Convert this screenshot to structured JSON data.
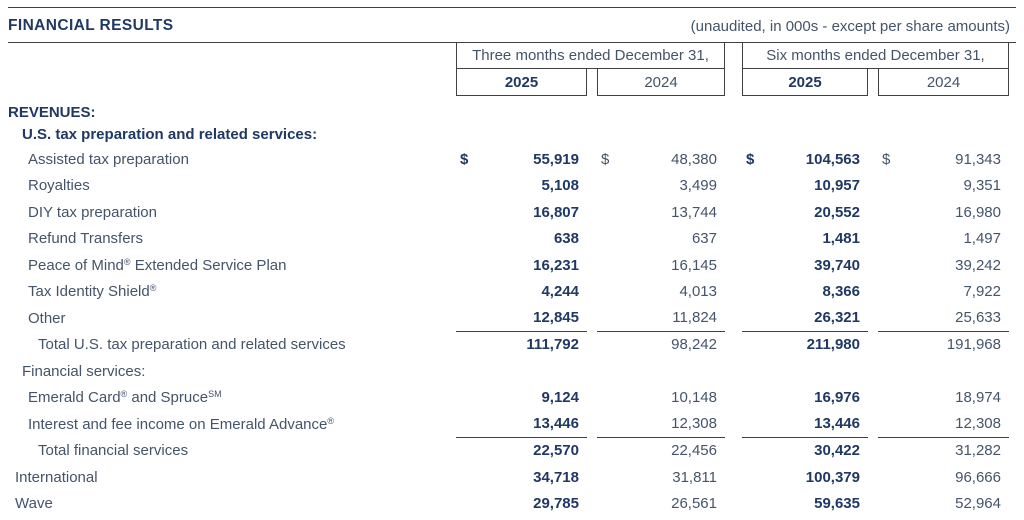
{
  "header": {
    "title": "FINANCIAL RESULTS",
    "note": "(unaudited, in 000s - except per share amounts)"
  },
  "columns": {
    "groups": [
      {
        "label": "Three months ended December 31,",
        "years": [
          "2025",
          "2024"
        ]
      },
      {
        "label": "Six months ended December 31,",
        "years": [
          "2025",
          "2024"
        ]
      }
    ]
  },
  "colors": {
    "heading_navy": "#1F3864",
    "body_slate": "#44546A",
    "rule_gray": "#404040"
  },
  "table": {
    "currency_symbol": "$",
    "rows": [
      {
        "label_parts": [
          [
            "t",
            "REVENUES:"
          ]
        ],
        "bold": true,
        "indent": 0,
        "size": "section"
      },
      {
        "label_parts": [
          [
            "t",
            "U.S. tax preparation and related services:"
          ]
        ],
        "bold": true,
        "indent": 2,
        "size": "sub"
      },
      {
        "label_parts": [
          [
            "t",
            "Assisted tax preparation"
          ]
        ],
        "indent": 3,
        "dollar": true,
        "values": [
          "55,919",
          "48,380",
          "104,563",
          "91,343"
        ]
      },
      {
        "label_parts": [
          [
            "t",
            "Royalties"
          ]
        ],
        "indent": 3,
        "values": [
          "5,108",
          "3,499",
          "10,957",
          "9,351"
        ]
      },
      {
        "label_parts": [
          [
            "t",
            "DIY tax preparation"
          ]
        ],
        "indent": 3,
        "values": [
          "16,807",
          "13,744",
          "20,552",
          "16,980"
        ]
      },
      {
        "label_parts": [
          [
            "t",
            "Refund Transfers"
          ]
        ],
        "indent": 3,
        "values": [
          "638",
          "637",
          "1,481",
          "1,497"
        ]
      },
      {
        "label_parts": [
          [
            "t",
            "Peace of Mind"
          ],
          [
            "s",
            "®"
          ],
          [
            "t",
            " Extended Service Plan"
          ]
        ],
        "indent": 3,
        "values": [
          "16,231",
          "16,145",
          "39,740",
          "39,242"
        ]
      },
      {
        "label_parts": [
          [
            "t",
            "Tax Identity Shield"
          ],
          [
            "s",
            "®"
          ]
        ],
        "indent": 3,
        "values": [
          "4,244",
          "4,013",
          "8,366",
          "7,922"
        ]
      },
      {
        "label_parts": [
          [
            "t",
            "Other"
          ]
        ],
        "indent": 3,
        "values": [
          "12,845",
          "11,824",
          "26,321",
          "25,633"
        ],
        "rule_below": true
      },
      {
        "label_parts": [
          [
            "t",
            "Total U.S. tax preparation and related services"
          ]
        ],
        "indent": 4,
        "values": [
          "111,792",
          "98,242",
          "211,980",
          "191,968"
        ]
      },
      {
        "label_parts": [
          [
            "t",
            "Financial services:"
          ]
        ],
        "indent": 2
      },
      {
        "label_parts": [
          [
            "t",
            "Emerald Card"
          ],
          [
            "s",
            "®"
          ],
          [
            "t",
            " and Spruce"
          ],
          [
            "s",
            "SM"
          ]
        ],
        "indent": 3,
        "values": [
          "9,124",
          "10,148",
          "16,976",
          "18,974"
        ]
      },
      {
        "label_parts": [
          [
            "t",
            "Interest and fee income on Emerald Advance"
          ],
          [
            "s",
            "®"
          ]
        ],
        "indent": 3,
        "values": [
          "13,446",
          "12,308",
          "13,446",
          "12,308"
        ],
        "rule_below": true
      },
      {
        "label_parts": [
          [
            "t",
            "Total financial services"
          ]
        ],
        "indent": 4,
        "values": [
          "22,570",
          "22,456",
          "30,422",
          "31,282"
        ]
      },
      {
        "label_parts": [
          [
            "t",
            "International"
          ]
        ],
        "indent": 1,
        "values": [
          "34,718",
          "31,811",
          "100,379",
          "96,666"
        ]
      },
      {
        "label_parts": [
          [
            "t",
            "Wave"
          ]
        ],
        "indent": 1,
        "values": [
          "29,785",
          "26,561",
          "59,635",
          "52,964"
        ]
      }
    ]
  }
}
